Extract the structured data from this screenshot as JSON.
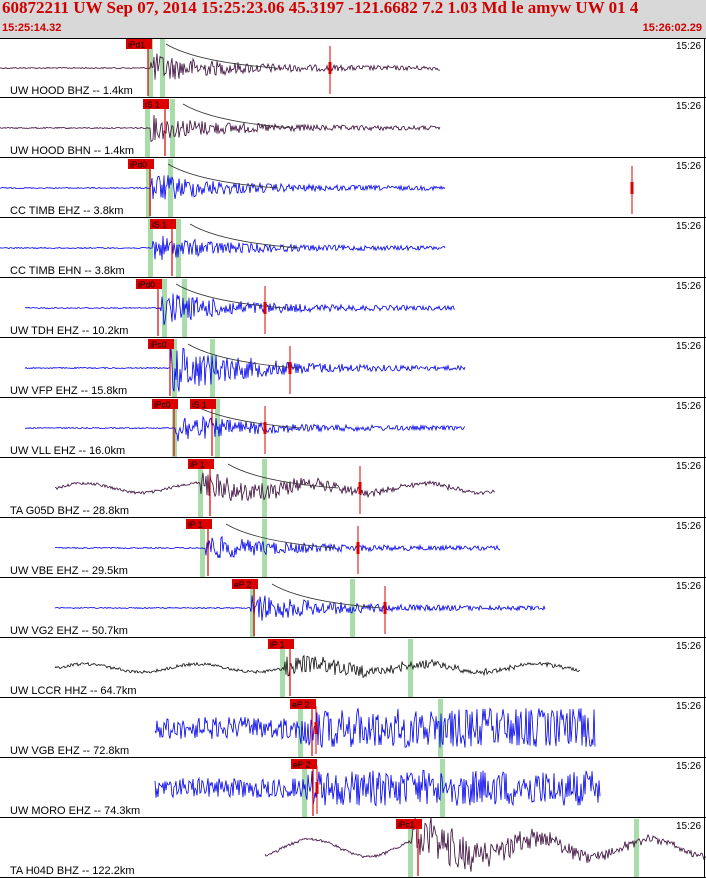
{
  "header": {
    "title": "60872211 UW Sep 07, 2014 15:25:23.06   45.3197 -121.6682  7.2 1.03 Md le amyw UW 01   4",
    "start_time": "15:25:14.32",
    "end_time": "15:26:02.29"
  },
  "time_tick_label": "15:26",
  "colors": {
    "trace_blue": "#0000ee",
    "trace_black": "#111111",
    "trace_dark": "#3a0a3a",
    "pick": "#dd0000",
    "phase_band": "#a8dca8",
    "header_bg": "#d8d8d8"
  },
  "traces": [
    {
      "station": "UW HOOD BHZ -- 1.4km",
      "color": "dark",
      "picks": [
        {
          "label": "iPd1"
        }
      ],
      "style": "quake",
      "onset": 150,
      "end": 440,
      "amp": 14
    },
    {
      "station": "UW HOOD BHN -- 1.4km",
      "color": "dark",
      "picks": [
        {
          "label": "iS 1"
        }
      ],
      "style": "quake",
      "onset": 150,
      "end": 440,
      "amp": 12
    },
    {
      "station": "CC TIMB EHZ -- 3.8km",
      "color": "blue",
      "picks": [
        {
          "label": "iPd0"
        }
      ],
      "style": "quake",
      "onset": 150,
      "end": 445,
      "amp": 14
    },
    {
      "station": "CC TIMB EHN -- 3.8km",
      "color": "blue",
      "picks": [
        {
          "label": "iS 1"
        }
      ],
      "style": "quake",
      "onset": 152,
      "end": 445,
      "amp": 12
    },
    {
      "station": "UW TDH EHZ -- 10.2km",
      "color": "blue",
      "picks": [
        {
          "label": "iPd0"
        }
      ],
      "style": "quake",
      "onset": 160,
      "end": 455,
      "amp": 16
    },
    {
      "station": "UW VFP EHZ -- 15.8km",
      "color": "blue",
      "picks": [
        {
          "label": "iPc0"
        }
      ],
      "style": "quake",
      "onset": 170,
      "end": 465,
      "amp": 26
    },
    {
      "station": "UW VLL EHZ -- 16.0km",
      "color": "blue",
      "picks": [
        {
          "label": "iPc0"
        },
        {
          "label": "iS 1"
        }
      ],
      "style": "quake",
      "onset": 175,
      "end": 465,
      "amp": 14
    },
    {
      "station": "TA G05D BHZ -- 28.8km",
      "color": "dark",
      "picks": [
        {
          "label": "iP 1"
        }
      ],
      "style": "wavy",
      "onset": 200,
      "end": 495,
      "amp": 12
    },
    {
      "station": "UW VBE EHZ -- 29.5km",
      "color": "blue",
      "picks": [
        {
          "label": "iP 1"
        }
      ],
      "style": "quake",
      "onset": 205,
      "end": 500,
      "amp": 12
    },
    {
      "station": "UW VG2 EHZ -- 50.7km",
      "color": "blue",
      "picks": [
        {
          "label": "eP 2"
        }
      ],
      "style": "quake",
      "onset": 250,
      "end": 545,
      "amp": 14
    },
    {
      "station": "UW LCCR HHZ -- 64.7km",
      "color": "black",
      "picks": [
        {
          "label": "iP 1"
        }
      ],
      "style": "wavy",
      "onset": 280,
      "end": 580,
      "amp": 10
    },
    {
      "station": "UW VGB EHZ -- 72.8km",
      "color": "blue",
      "picks": [
        {
          "label": "eP 2"
        }
      ],
      "style": "noisy",
      "onset": 300,
      "end": 595,
      "amp": 20
    },
    {
      "station": "UW MORO EHZ -- 74.3km",
      "color": "blue",
      "picks": [
        {
          "label": "eP 2"
        }
      ],
      "style": "noisy",
      "onset": 305,
      "end": 600,
      "amp": 18
    },
    {
      "station": "TA H04D BHZ -- 122.2km",
      "color": "dark",
      "picks": [
        {
          "label": "iPc1"
        }
      ],
      "style": "wavy",
      "onset": 410,
      "end": 706,
      "amp": 22
    }
  ]
}
